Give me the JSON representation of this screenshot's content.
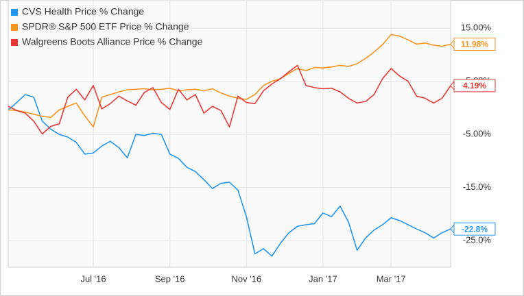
{
  "chart_data": {
    "type": "line",
    "categories": [
      null,
      null,
      null,
      null,
      null,
      null,
      null,
      null,
      null,
      null,
      "Jul '16",
      null,
      null,
      null,
      null,
      null,
      null,
      null,
      null,
      "Sep '16",
      null,
      null,
      null,
      null,
      null,
      null,
      null,
      null,
      "Nov '16",
      null,
      null,
      null,
      null,
      null,
      null,
      null,
      null,
      "Jan '17",
      null,
      null,
      null,
      null,
      null,
      null,
      null,
      "Mar '17",
      null,
      null,
      null,
      null,
      null,
      null,
      null
    ],
    "series": [
      {
        "name": "CVS Health Price % Change",
        "color": "#2196f3",
        "values": [
          -0.4,
          1.0,
          2.5,
          2.0,
          -2.5,
          -4.0,
          -5.0,
          -5.5,
          -6.5,
          -8.7,
          -8.5,
          -7.2,
          -6.3,
          -7.5,
          -9.4,
          -5.0,
          -5.2,
          -4.8,
          -5.0,
          -8.7,
          -9.5,
          -11.2,
          -12.0,
          -13.5,
          -15.2,
          -14.2,
          -14.0,
          -15.5,
          -20.5,
          -27.5,
          -26.5,
          -27.9,
          -25.5,
          -23.5,
          -22.3,
          -22.0,
          -21.8,
          -19.8,
          -20.5,
          -18.5,
          -21.5,
          -26.8,
          -24.5,
          -23.0,
          -22.0,
          -20.7,
          -21.2,
          -22.0,
          -22.8,
          -23.5,
          -24.5,
          -23.5,
          -22.8
        ],
        "value_labels": [
          null,
          null,
          null,
          null,
          null,
          null,
          null,
          null,
          null,
          null,
          null,
          null,
          null,
          null,
          null,
          null,
          null,
          null,
          null,
          null,
          null,
          null,
          null,
          null,
          null,
          null,
          null,
          null,
          null,
          null,
          null,
          null,
          null,
          null,
          null,
          null,
          null,
          null,
          null,
          null,
          null,
          null,
          null,
          null,
          null,
          null,
          null,
          null,
          null,
          null,
          null,
          null,
          "-22.8%"
        ]
      },
      {
        "name": "SPDR® S&P 500 ETF Price % Change",
        "color": "#f7931e",
        "values": [
          -0.4,
          -0.5,
          -0.8,
          -1.2,
          -1.6,
          -1.8,
          -0.4,
          0.3,
          0.9,
          -1.5,
          -3.6,
          2.0,
          2.5,
          3.0,
          3.4,
          3.5,
          3.6,
          3.4,
          3.5,
          3.7,
          3.2,
          3.4,
          3.5,
          3.2,
          3.6,
          2.8,
          2.2,
          1.8,
          1.6,
          2.5,
          4.2,
          5.0,
          5.5,
          6.5,
          7.4,
          7.0,
          7.6,
          7.5,
          7.7,
          8.0,
          7.8,
          8.3,
          9.3,
          10.5,
          11.9,
          13.8,
          13.5,
          12.8,
          12.0,
          12.2,
          11.8,
          11.6,
          11.98
        ],
        "value_labels": [
          null,
          null,
          null,
          null,
          null,
          null,
          null,
          null,
          null,
          null,
          null,
          null,
          null,
          null,
          null,
          null,
          null,
          null,
          null,
          null,
          null,
          null,
          null,
          null,
          null,
          null,
          null,
          null,
          null,
          null,
          null,
          null,
          null,
          null,
          null,
          null,
          null,
          null,
          null,
          null,
          null,
          null,
          null,
          null,
          null,
          null,
          null,
          null,
          null,
          null,
          null,
          null,
          "11.98%"
        ]
      },
      {
        "name": "Walgreens Boots Alliance Price % Change",
        "color": "#e53935",
        "values": [
          0.3,
          -0.5,
          -1.0,
          -2.5,
          -4.9,
          -3.5,
          -3.0,
          2.0,
          3.5,
          1.5,
          4.2,
          -0.2,
          0.8,
          2.2,
          1.3,
          0.5,
          2.9,
          3.8,
          1.0,
          -0.3,
          3.5,
          1.5,
          2.5,
          -1.0,
          0.3,
          -0.5,
          -3.6,
          2.2,
          1.0,
          0.8,
          3.2,
          4.5,
          5.5,
          6.8,
          8.0,
          4.2,
          3.8,
          3.6,
          3.7,
          3.0,
          1.8,
          0.9,
          1.2,
          2.5,
          5.5,
          7.4,
          6.0,
          5.0,
          2.2,
          1.8,
          0.9,
          1.8,
          4.19
        ],
        "value_labels": [
          null,
          null,
          null,
          null,
          null,
          null,
          null,
          null,
          null,
          null,
          null,
          null,
          null,
          null,
          null,
          null,
          null,
          null,
          null,
          null,
          null,
          null,
          null,
          null,
          null,
          null,
          null,
          null,
          null,
          null,
          null,
          null,
          null,
          null,
          null,
          null,
          null,
          null,
          null,
          null,
          null,
          null,
          null,
          null,
          null,
          null,
          null,
          null,
          null,
          null,
          null,
          null,
          "4.19%"
        ]
      }
    ],
    "ylim": [
      -30,
      20.3
    ],
    "yticks": [
      {
        "value": 15,
        "label": "15.00%"
      },
      {
        "value": 5,
        "label": "5.00%"
      },
      {
        "value": -5,
        "label": "-5.00%"
      },
      {
        "value": -15,
        "label": "-15.0%"
      },
      {
        "value": -25,
        "label": "-25.0%"
      }
    ],
    "grid": true,
    "legend": "top-left"
  }
}
